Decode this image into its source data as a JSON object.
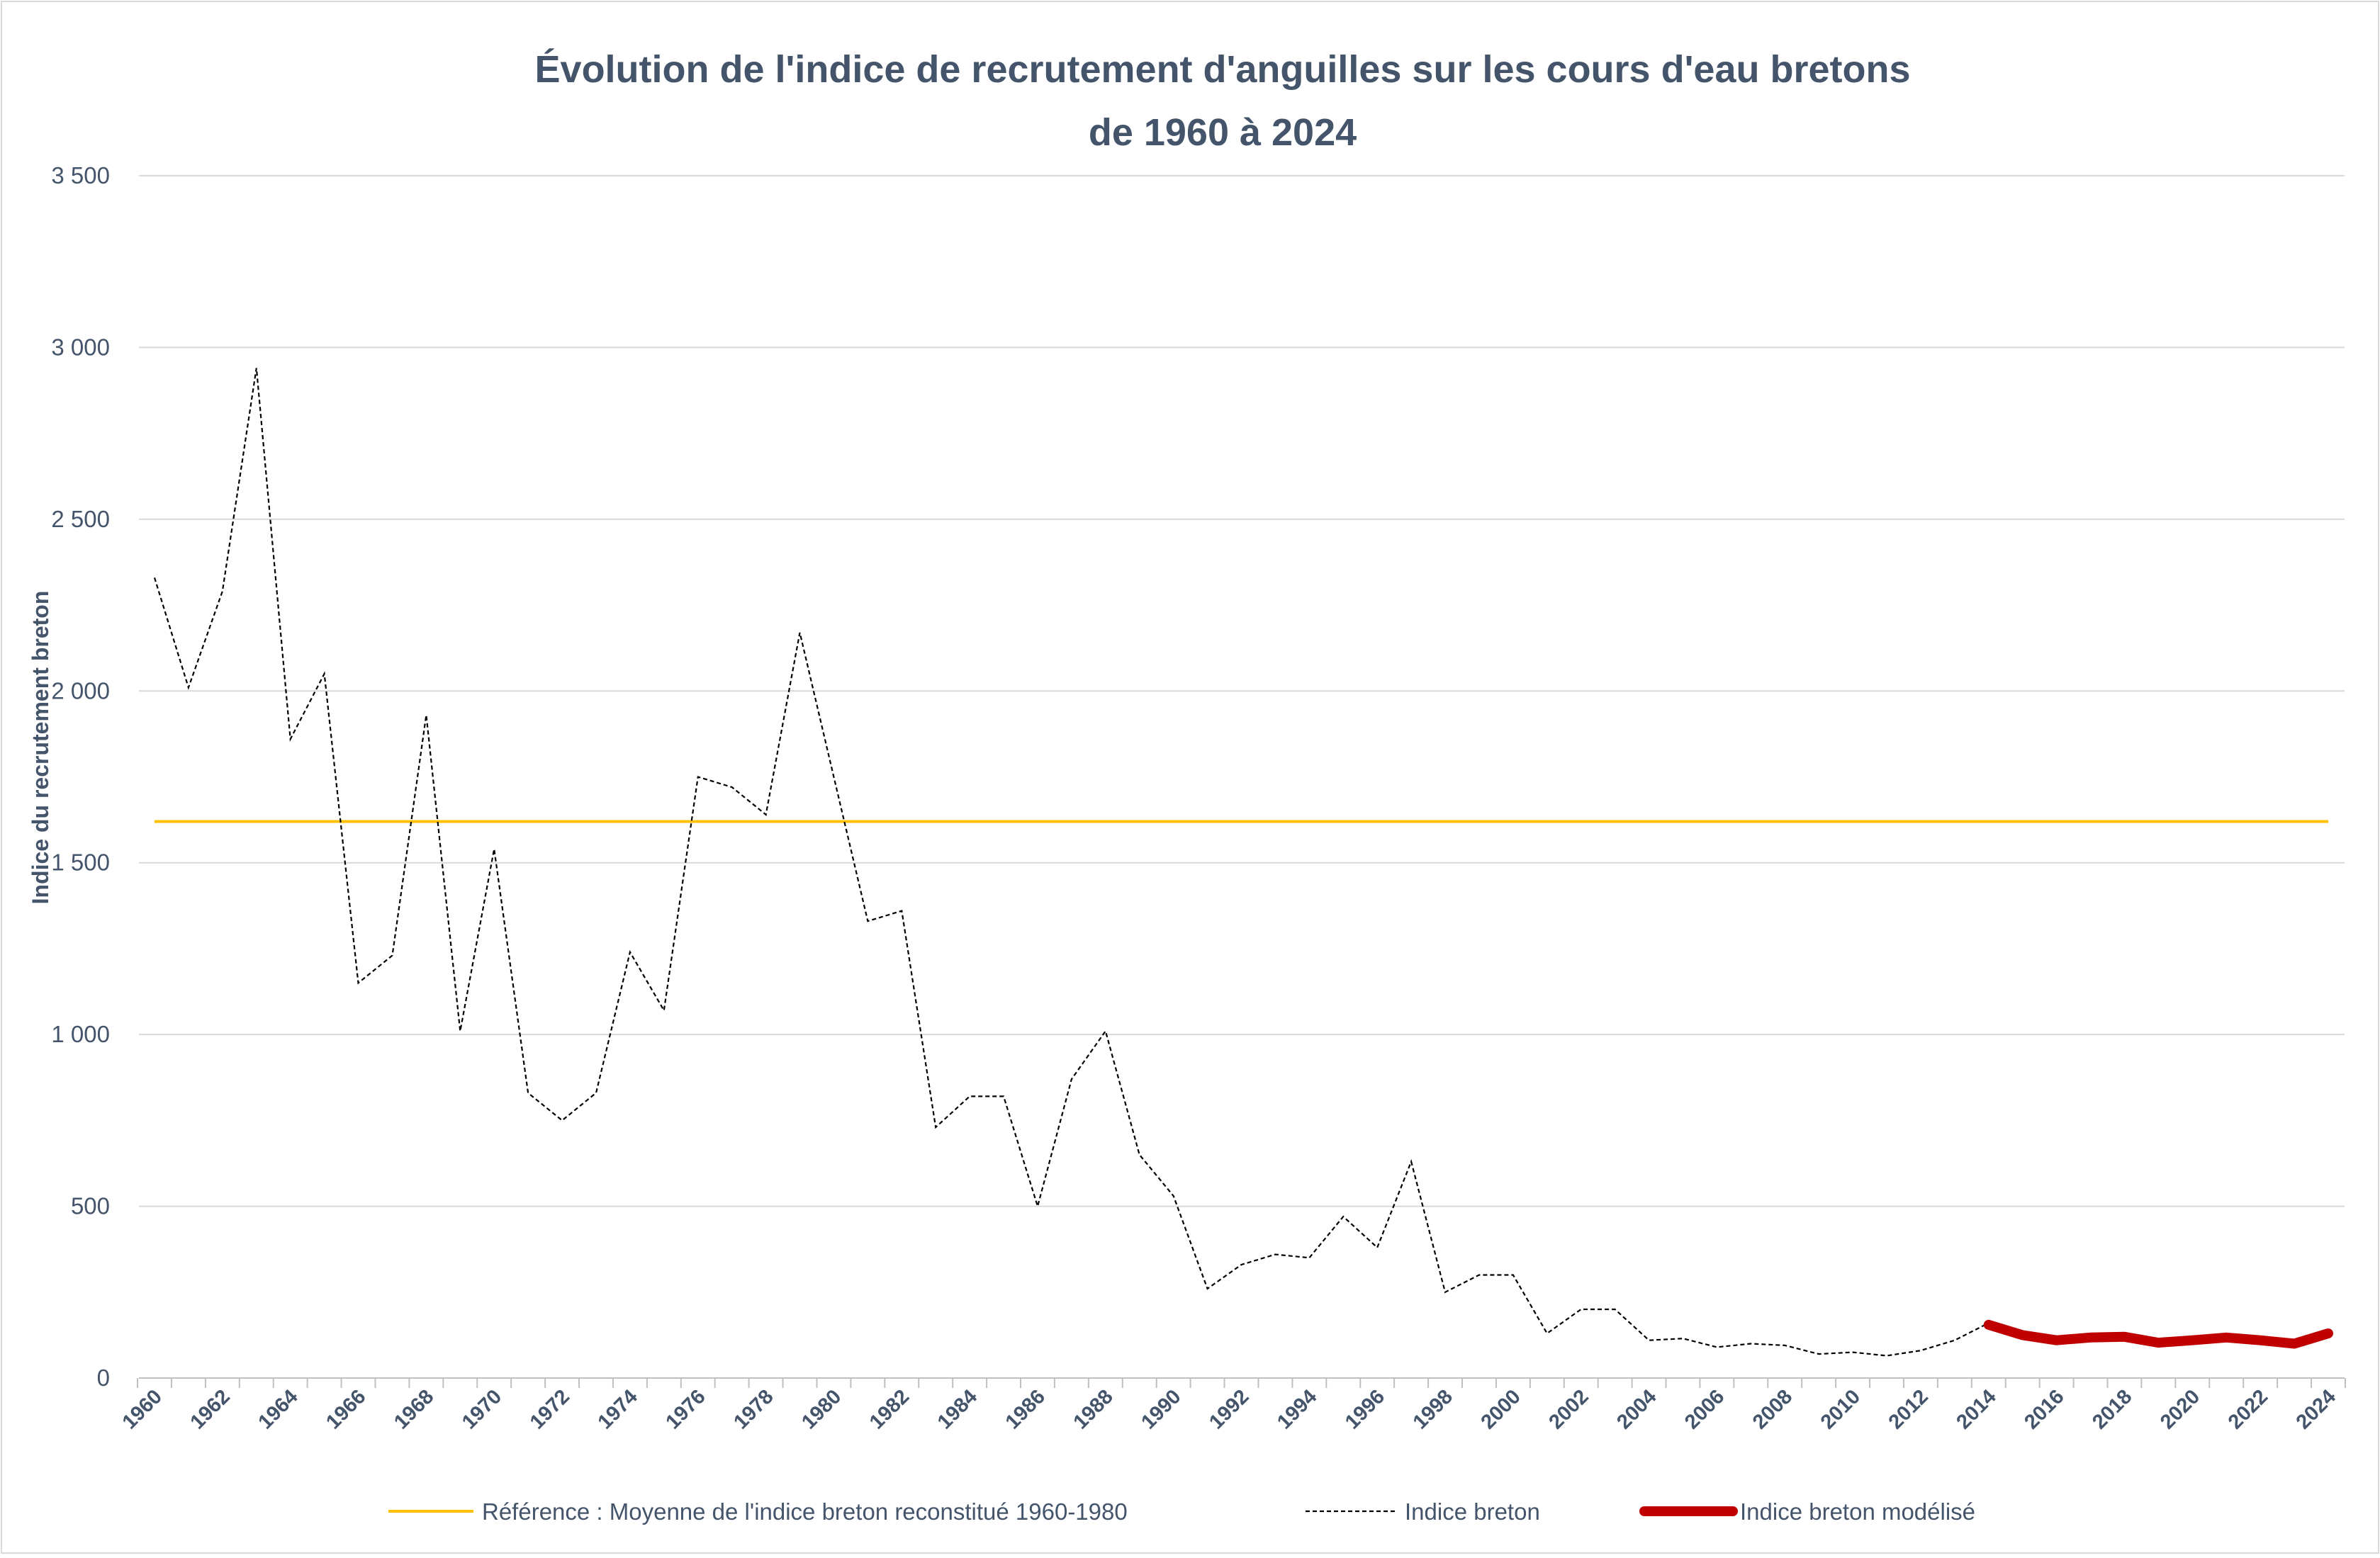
{
  "chart_data": {
    "type": "line",
    "title": [
      "Évolution de l'indice de recrutement d'anguilles sur les cours d'eau bretons",
      "de 1960 à 2024"
    ],
    "xlabel": "",
    "ylabel": "Indice du recrutement breton",
    "ylim": [
      0,
      3500
    ],
    "yticks": [
      0,
      500,
      1000,
      1500,
      2000,
      2500,
      3000,
      3500
    ],
    "ytick_labels": [
      "0",
      "500",
      "1 000",
      "1 500",
      "2 000",
      "2 500",
      "3 000",
      "3 500"
    ],
    "xlim": [
      1960,
      2024
    ],
    "xticks": [
      1960,
      1962,
      1964,
      1966,
      1968,
      1970,
      1972,
      1974,
      1976,
      1978,
      1980,
      1982,
      1984,
      1986,
      1988,
      1990,
      1992,
      1994,
      1996,
      1998,
      2000,
      2002,
      2004,
      2006,
      2008,
      2010,
      2012,
      2014,
      2016,
      2018,
      2020,
      2022,
      2024
    ],
    "grid": true,
    "legend_position": "bottom",
    "series": [
      {
        "name": "Référence : Moyenne de l'indice breton reconstitué 1960-1980",
        "color": "#FFC000",
        "style": "solid",
        "x": [
          1960,
          2024
        ],
        "y": [
          1620,
          1620
        ]
      },
      {
        "name": "Indice breton",
        "color": "#000000",
        "style": "dashed",
        "x": [
          1960,
          1961,
          1962,
          1963,
          1964,
          1965,
          1966,
          1967,
          1968,
          1969,
          1970,
          1971,
          1972,
          1973,
          1974,
          1975,
          1976,
          1977,
          1978,
          1979,
          1980,
          1981,
          1982,
          1983,
          1984,
          1985,
          1986,
          1987,
          1988,
          1989,
          1990,
          1991,
          1992,
          1993,
          1994,
          1995,
          1996,
          1997,
          1998,
          1999,
          2000,
          2001,
          2002,
          2003,
          2004,
          2005,
          2006,
          2007,
          2008,
          2009,
          2010,
          2011,
          2012,
          2013,
          2014
        ],
        "y": [
          2330,
          2010,
          2290,
          2940,
          1860,
          2050,
          1150,
          1230,
          1930,
          1010,
          1540,
          830,
          750,
          830,
          1240,
          1070,
          1750,
          1720,
          1640,
          2170,
          1750,
          1330,
          1360,
          730,
          820,
          820,
          500,
          870,
          1010,
          650,
          530,
          260,
          330,
          360,
          350,
          470,
          380,
          630,
          250,
          300,
          300,
          130,
          200,
          200,
          110,
          115,
          90,
          100,
          95,
          70,
          75,
          65,
          80,
          110,
          160
        ]
      },
      {
        "name": "Indice breton modélisé",
        "color": "#C00000",
        "style": "thick",
        "x": [
          2014,
          2015,
          2016,
          2017,
          2018,
          2019,
          2020,
          2021,
          2022,
          2023,
          2024
        ],
        "y": [
          155,
          125,
          110,
          118,
          120,
          103,
          110,
          118,
          110,
          100,
          130
        ]
      }
    ]
  }
}
